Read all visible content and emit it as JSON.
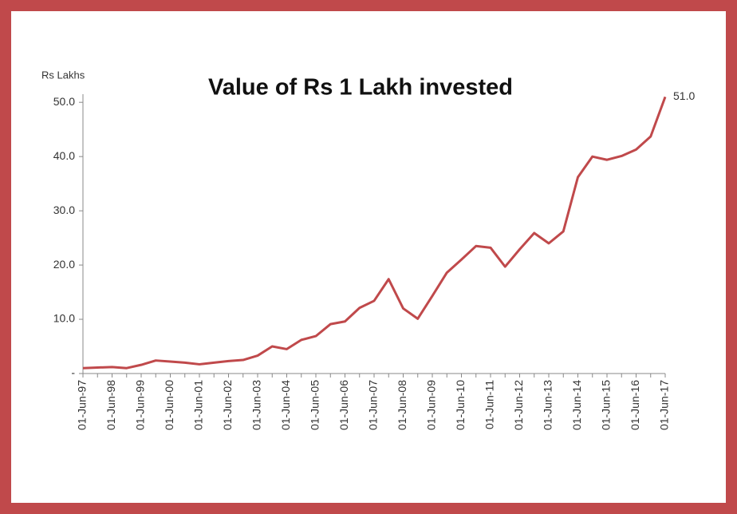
{
  "chart_data": {
    "type": "line",
    "title": "Value of Rs 1 Lakh invested",
    "y_label": "Rs Lakhs",
    "categories": [
      "01-Jun-97",
      null,
      "01-Jun-98",
      null,
      "01-Jun-99",
      null,
      "01-Jun-00",
      null,
      "01-Jun-01",
      null,
      "01-Jun-02",
      null,
      "01-Jun-03",
      null,
      "01-Jun-04",
      null,
      "01-Jun-05",
      null,
      "01-Jun-06",
      null,
      "01-Jun-07",
      null,
      "01-Jun-08",
      null,
      "01-Jun-09",
      null,
      "01-Jun-10",
      null,
      "01-Jun-11",
      null,
      "01-Jun-12",
      null,
      "01-Jun-13",
      null,
      "01-Jun-14",
      null,
      "01-Jun-15",
      null,
      "01-Jun-16",
      null,
      "01-Jun-17"
    ],
    "values": [
      1.0,
      1.1,
      1.2,
      1.0,
      1.6,
      2.4,
      2.2,
      2.0,
      1.7,
      2.0,
      2.3,
      2.5,
      3.3,
      5.0,
      4.5,
      6.2,
      6.9,
      9.1,
      9.6,
      12.1,
      13.4,
      17.4,
      12.0,
      10.1,
      14.3,
      18.6,
      21.0,
      23.5,
      23.2,
      19.7,
      22.9,
      25.9,
      24.0,
      26.2,
      36.2,
      40.0,
      39.4,
      40.1,
      41.3,
      43.7,
      51.0
    ],
    "value_labels": [
      null,
      null,
      null,
      null,
      null,
      null,
      null,
      null,
      null,
      null,
      null,
      null,
      null,
      null,
      null,
      null,
      null,
      null,
      null,
      null,
      null,
      null,
      null,
      null,
      null,
      null,
      null,
      null,
      null,
      null,
      null,
      null,
      null,
      null,
      null,
      null,
      null,
      null,
      null,
      null,
      "51.0"
    ],
    "color": "#c0494b",
    "ylim": [
      0,
      51.5
    ],
    "yticks": [
      {
        "value": 0,
        "label": "-"
      },
      {
        "value": 10,
        "label": "10.0"
      },
      {
        "value": 20,
        "label": "20.0"
      },
      {
        "value": 30,
        "label": "30.0"
      },
      {
        "value": 40,
        "label": "40.0"
      },
      {
        "value": 50,
        "label": "50.0"
      }
    ],
    "grid": false
  }
}
